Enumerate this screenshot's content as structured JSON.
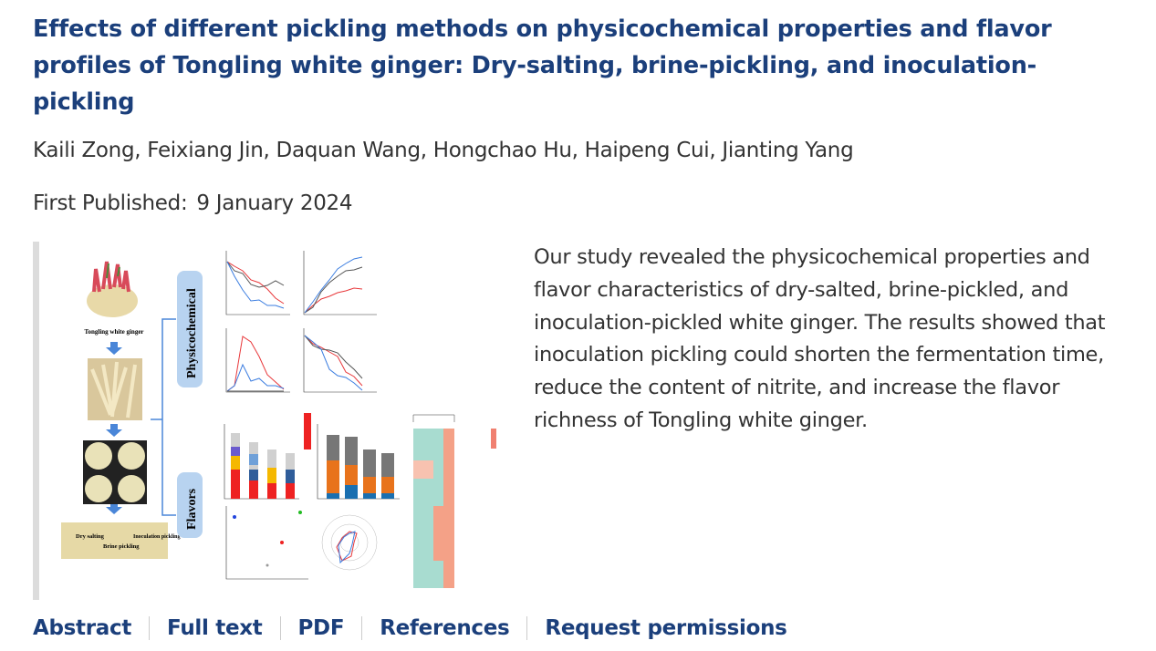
{
  "article": {
    "title": "Effects of different pickling methods on physicochemical properties and flavor profiles of Tongling white ginger: Dry-salting, brine-pickling, and inoculation-pickling",
    "authors": "Kaili Zong, Feixiang Jin, Daquan Wang, Hongchao Hu, Haipeng Cui, Jianting Yang",
    "published_label": "First Published:",
    "published_date": "9 January 2024",
    "abstract": "Our study revealed the physicochemical properties and flavor characteristics of dry-salted, brine-pickled, and inoculation-pickled white ginger. The results showed that inoculation pickling could shorten the fermentation time, reduce the content of nitrite, and increase the flavor richness of Tongling white ginger."
  },
  "figure": {
    "ginger_label": "Tongling white ginger",
    "physicochemical_label": "Physicochemical",
    "flavors_label": "Flavors",
    "method_labels": [
      "Dry salting",
      "Brine pickling",
      "Inoculation pickling"
    ],
    "colors": {
      "red": "#e8383b",
      "blue": "#3b7de0",
      "gray": "#555555",
      "panel": "#b8d3f0",
      "arrow": "#4a86d8"
    }
  },
  "links": [
    {
      "label": "Abstract"
    },
    {
      "label": "Full text"
    },
    {
      "label": "PDF"
    },
    {
      "label": "References"
    },
    {
      "label": "Request permissions"
    }
  ]
}
